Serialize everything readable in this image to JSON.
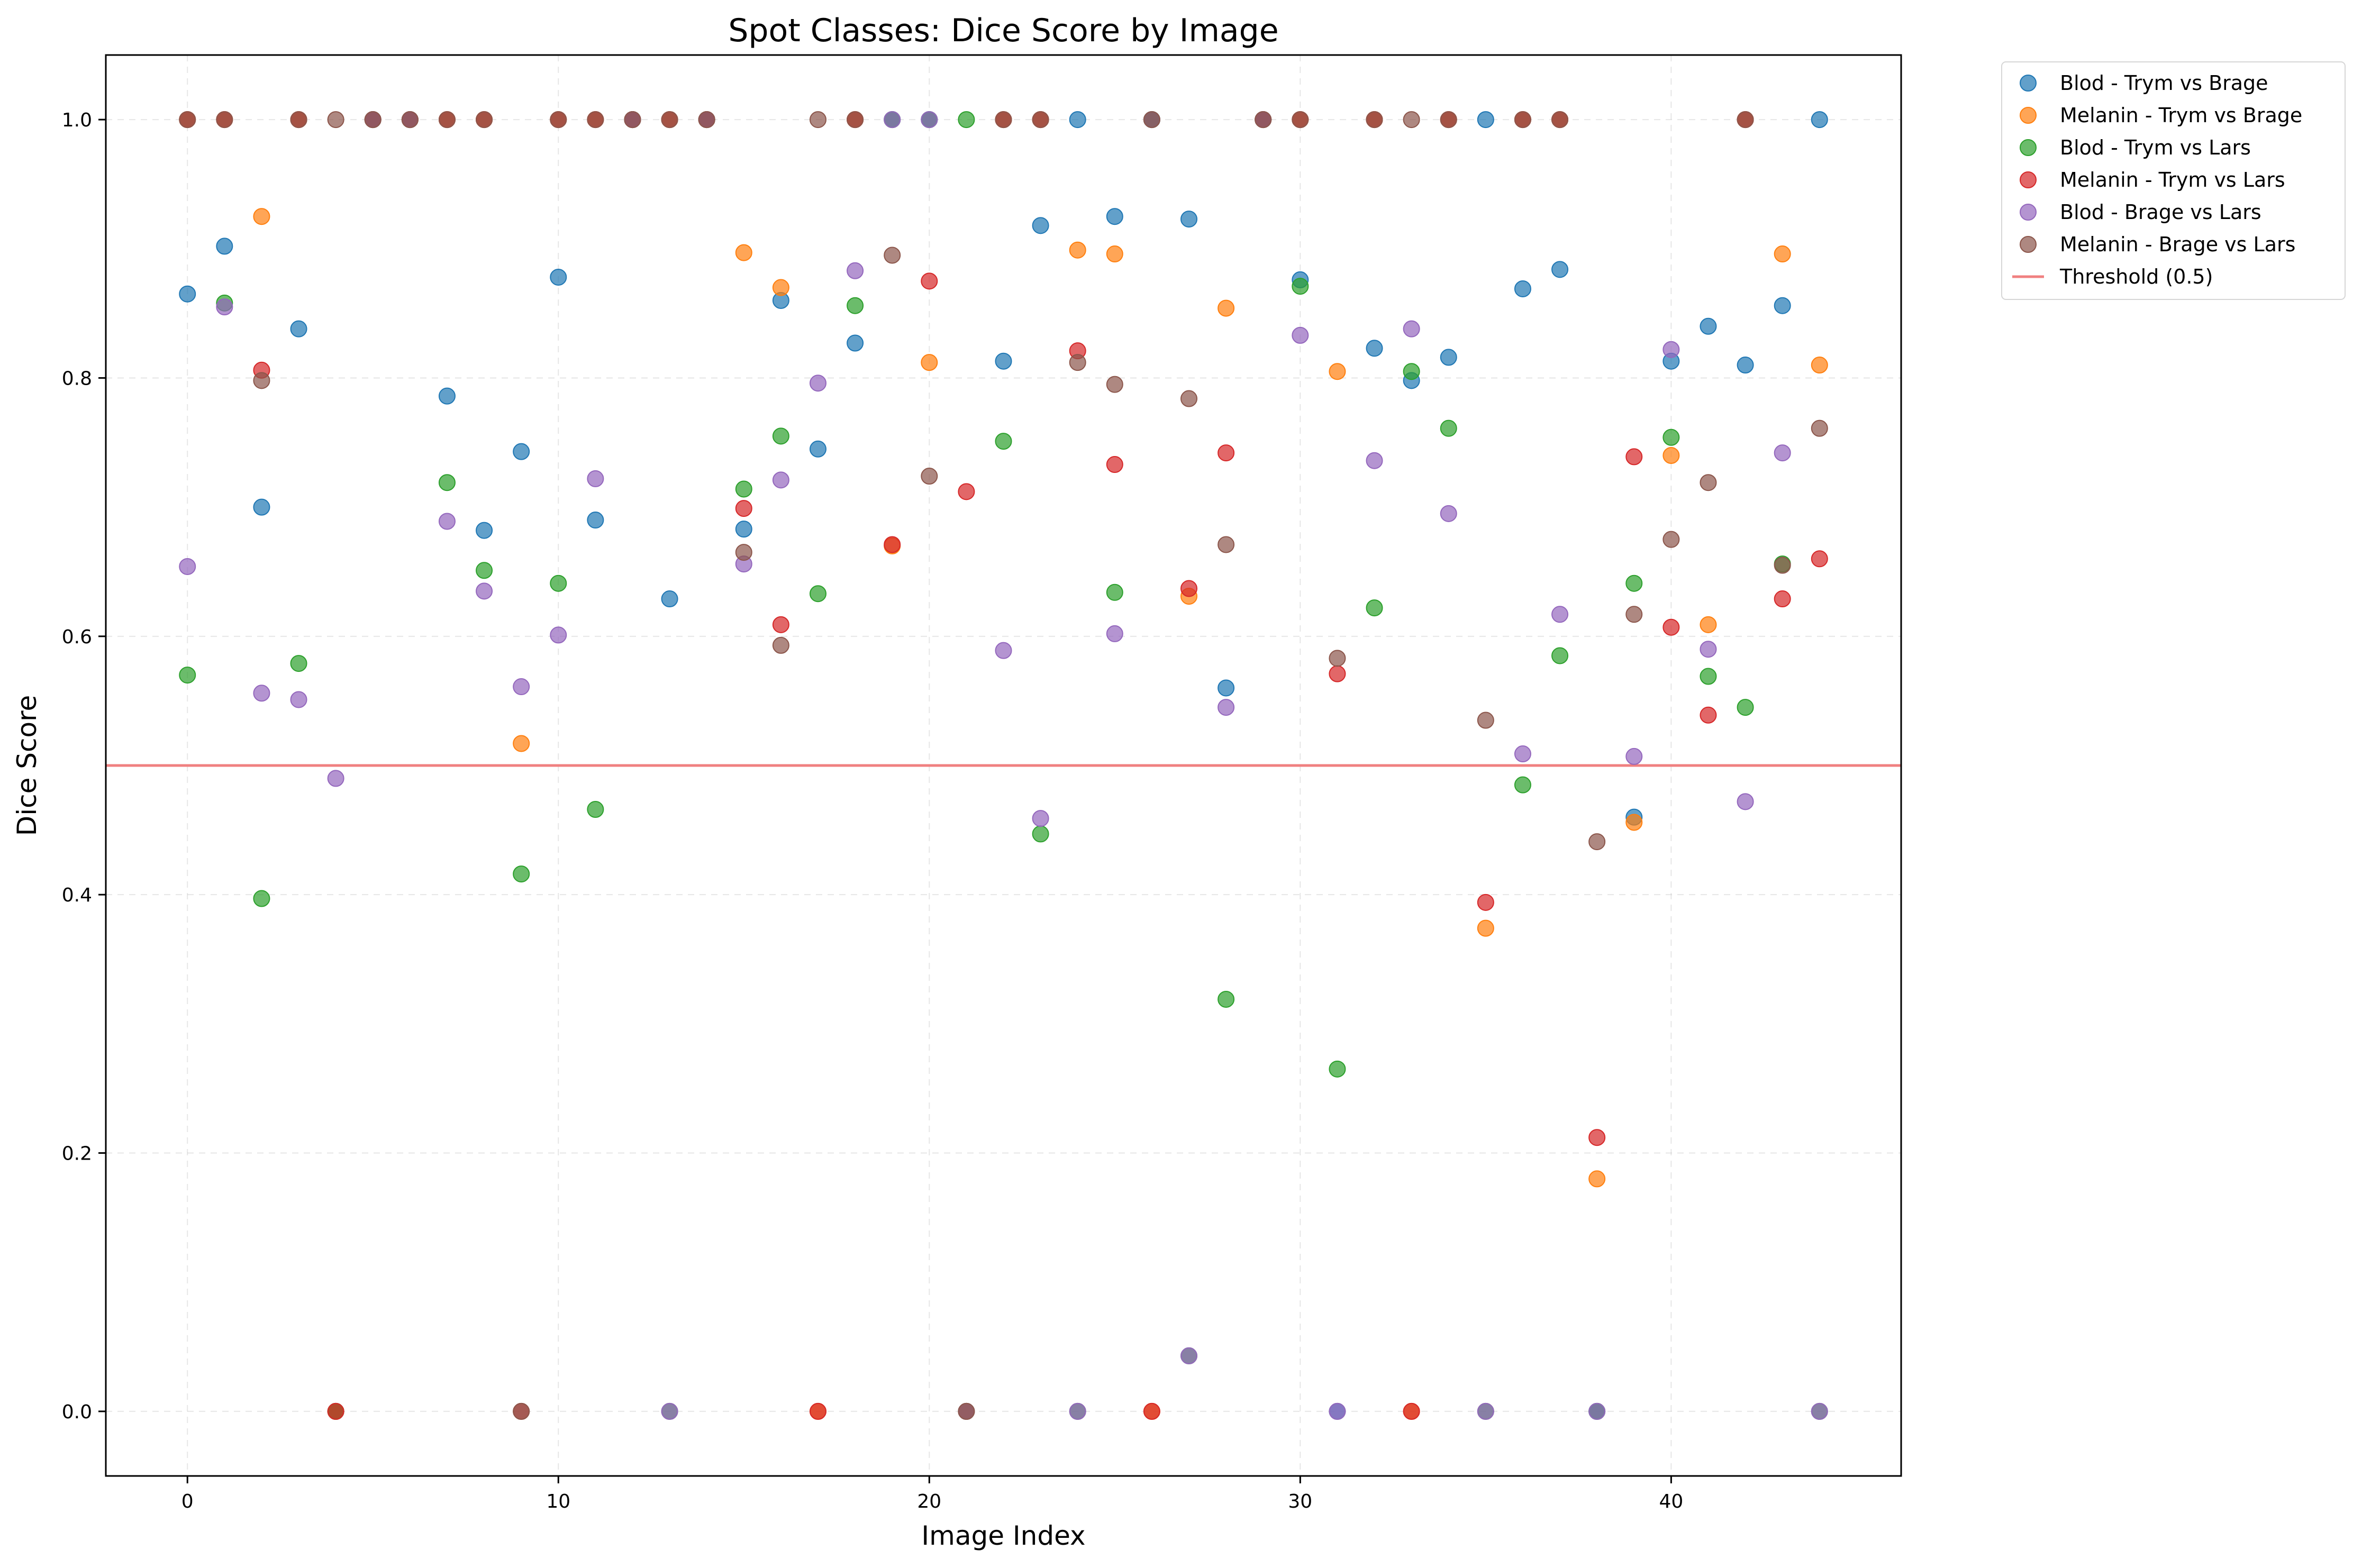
{
  "chart_data": {
    "type": "scatter",
    "title": "Spot Classes: Dice Score by Image",
    "xlabel": "Image Index",
    "ylabel": "Dice Score",
    "xlim": [
      -2.2,
      46.2
    ],
    "ylim": [
      -0.05,
      1.05
    ],
    "xticks": [
      0,
      10,
      20,
      30,
      40
    ],
    "yticks": [
      0.0,
      0.2,
      0.4,
      0.6,
      0.8,
      1.0
    ],
    "xtick_labels": [
      "0",
      "10",
      "20",
      "30",
      "40"
    ],
    "ytick_labels": [
      "0.0",
      "0.2",
      "0.4",
      "0.6",
      "0.8",
      "1.0"
    ],
    "grid": true,
    "legend_position": "outside-top-right",
    "threshold": {
      "name": "Threshold (0.5)",
      "value": 0.5,
      "color": "#f08080"
    },
    "series": [
      {
        "name": "Blod - Trym vs Brage",
        "color": "#1f77b4",
        "x": [
          0,
          1,
          2,
          3,
          4,
          5,
          6,
          7,
          8,
          9,
          10,
          11,
          12,
          13,
          14,
          15,
          16,
          17,
          18,
          19,
          20,
          21,
          22,
          23,
          24,
          25,
          26,
          27,
          28,
          29,
          30,
          31,
          32,
          33,
          34,
          35,
          36,
          37,
          38,
          39,
          40,
          41,
          42,
          43,
          44
        ],
        "y": [
          0.865,
          0.902,
          0.7,
          0.838,
          0.0,
          1.0,
          1.0,
          0.786,
          0.682,
          0.743,
          0.878,
          0.69,
          1.0,
          0.629,
          1.0,
          0.683,
          0.86,
          0.745,
          0.827,
          1.0,
          1.0,
          0.0,
          0.813,
          0.918,
          1.0,
          0.925,
          1.0,
          0.923,
          0.56,
          1.0,
          0.876,
          0.0,
          0.823,
          0.798,
          0.816,
          1.0,
          0.869,
          0.884,
          0.0,
          0.46,
          0.813,
          0.84,
          0.81,
          0.856,
          1.0
        ]
      },
      {
        "name": "Melanin - Trym vs Brage",
        "color": "#ff7f0e",
        "x": [
          0,
          1,
          2,
          3,
          4,
          5,
          6,
          7,
          8,
          9,
          10,
          11,
          12,
          13,
          14,
          15,
          16,
          17,
          18,
          19,
          20,
          21,
          22,
          23,
          24,
          25,
          26,
          27,
          28,
          29,
          30,
          31,
          32,
          33,
          34,
          35,
          36,
          37,
          38,
          39,
          40,
          41,
          42,
          43,
          44
        ],
        "y": [
          1.0,
          1.0,
          0.925,
          1.0,
          0.0,
          1.0,
          1.0,
          1.0,
          1.0,
          0.517,
          1.0,
          1.0,
          1.0,
          1.0,
          1.0,
          0.897,
          0.87,
          0.0,
          1.0,
          0.67,
          0.812,
          0.0,
          1.0,
          1.0,
          0.899,
          0.896,
          0.0,
          0.631,
          0.854,
          1.0,
          1.0,
          0.805,
          1.0,
          0.0,
          1.0,
          0.374,
          1.0,
          1.0,
          0.18,
          0.456,
          0.74,
          0.609,
          1.0,
          0.896,
          0.81
        ]
      },
      {
        "name": "Blod - Trym vs Lars",
        "color": "#2ca02c",
        "x": [
          0,
          1,
          2,
          3,
          4,
          5,
          6,
          7,
          8,
          9,
          10,
          11,
          12,
          13,
          14,
          15,
          16,
          17,
          18,
          19,
          20,
          21,
          22,
          23,
          24,
          25,
          26,
          27,
          28,
          29,
          30,
          31,
          32,
          33,
          34,
          35,
          36,
          37,
          38,
          39,
          40,
          41,
          42,
          43,
          44
        ],
        "y": [
          0.57,
          0.858,
          0.397,
          0.579,
          0.0,
          1.0,
          1.0,
          0.719,
          0.651,
          0.416,
          0.641,
          0.466,
          1.0,
          0.0,
          1.0,
          0.714,
          0.755,
          0.633,
          0.856,
          1.0,
          1.0,
          1.0,
          0.751,
          0.447,
          0.0,
          0.634,
          1.0,
          0.043,
          0.319,
          1.0,
          0.871,
          0.265,
          0.622,
          0.805,
          0.761,
          0.0,
          0.485,
          0.585,
          0.0,
          0.641,
          0.754,
          0.569,
          0.545,
          0.656,
          0.0
        ]
      },
      {
        "name": "Melanin - Trym vs Lars",
        "color": "#d62728",
        "x": [
          0,
          1,
          2,
          3,
          4,
          5,
          6,
          7,
          8,
          9,
          10,
          11,
          12,
          13,
          14,
          15,
          16,
          17,
          18,
          19,
          20,
          21,
          22,
          23,
          24,
          25,
          26,
          27,
          28,
          29,
          30,
          31,
          32,
          33,
          34,
          35,
          36,
          37,
          38,
          39,
          40,
          41,
          42,
          43,
          44
        ],
        "y": [
          1.0,
          1.0,
          0.806,
          1.0,
          0.0,
          1.0,
          1.0,
          1.0,
          1.0,
          0.0,
          1.0,
          1.0,
          1.0,
          1.0,
          1.0,
          0.699,
          0.609,
          0.0,
          1.0,
          0.671,
          0.875,
          0.712,
          1.0,
          1.0,
          0.821,
          0.733,
          0.0,
          0.637,
          0.742,
          1.0,
          1.0,
          0.571,
          1.0,
          0.0,
          1.0,
          0.394,
          1.0,
          1.0,
          0.212,
          0.739,
          0.607,
          0.539,
          1.0,
          0.629,
          0.66
        ]
      },
      {
        "name": "Blod - Brage vs Lars",
        "color": "#9467bd",
        "x": [
          0,
          1,
          2,
          3,
          4,
          5,
          6,
          7,
          8,
          9,
          10,
          11,
          12,
          13,
          14,
          15,
          16,
          17,
          18,
          19,
          20,
          21,
          22,
          23,
          24,
          25,
          26,
          27,
          28,
          29,
          30,
          31,
          32,
          33,
          34,
          35,
          36,
          37,
          38,
          39,
          40,
          41,
          42,
          43,
          44
        ],
        "y": [
          0.654,
          0.855,
          0.556,
          0.551,
          0.49,
          1.0,
          1.0,
          0.689,
          0.635,
          0.561,
          0.601,
          0.722,
          1.0,
          0.0,
          1.0,
          0.656,
          0.721,
          0.796,
          0.883,
          1.0,
          1.0,
          0.0,
          0.589,
          0.459,
          0.0,
          0.602,
          1.0,
          0.043,
          0.545,
          1.0,
          0.833,
          0.0,
          0.736,
          0.838,
          0.695,
          0.0,
          0.509,
          0.617,
          0.0,
          0.507,
          0.822,
          0.59,
          0.472,
          0.742,
          0.0
        ]
      },
      {
        "name": "Melanin - Brage vs Lars",
        "color": "#8c564b",
        "x": [
          0,
          1,
          2,
          3,
          4,
          5,
          6,
          7,
          8,
          9,
          10,
          11,
          12,
          13,
          14,
          15,
          16,
          17,
          18,
          19,
          20,
          21,
          22,
          23,
          24,
          25,
          26,
          27,
          28,
          29,
          30,
          31,
          32,
          33,
          34,
          35,
          36,
          37,
          38,
          39,
          40,
          41,
          42,
          43,
          44
        ],
        "y": [
          1.0,
          1.0,
          0.798,
          1.0,
          1.0,
          1.0,
          1.0,
          1.0,
          1.0,
          0.0,
          1.0,
          1.0,
          1.0,
          1.0,
          1.0,
          0.665,
          0.593,
          1.0,
          1.0,
          0.895,
          0.724,
          0.0,
          1.0,
          1.0,
          0.812,
          0.795,
          1.0,
          0.784,
          0.671,
          1.0,
          1.0,
          0.583,
          1.0,
          1.0,
          1.0,
          0.535,
          1.0,
          1.0,
          0.441,
          0.617,
          0.675,
          0.719,
          1.0,
          0.655,
          0.761
        ]
      }
    ]
  }
}
